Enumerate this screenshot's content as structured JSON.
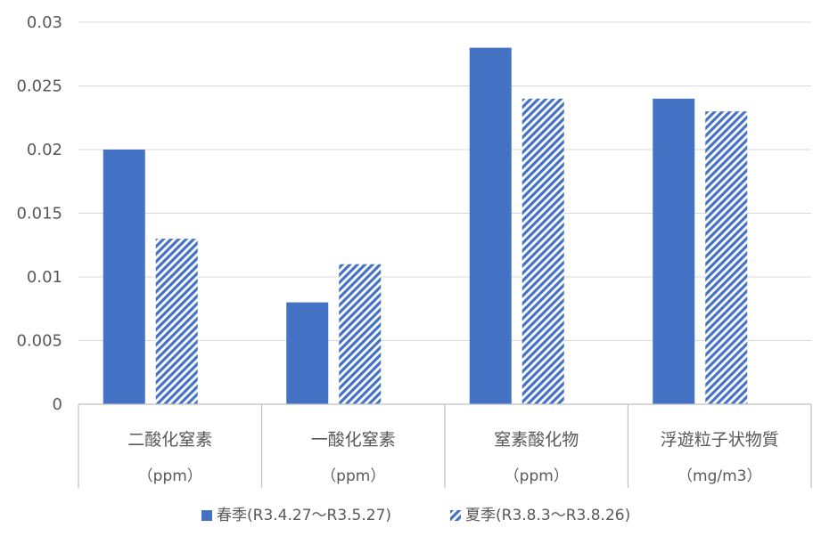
{
  "chart_data": {
    "type": "bar",
    "categories": [
      {
        "name": "二酸化窒素",
        "unit": "（ppm）"
      },
      {
        "name": "一酸化窒素",
        "unit": "（ppm）"
      },
      {
        "name": "窒素酸化物",
        "unit": "（ppm）"
      },
      {
        "name": "浮遊粒子状物質",
        "unit": "（mg/m3）"
      }
    ],
    "series": [
      {
        "name": "春季(R3.4.27～R3.5.27)",
        "values": [
          0.02,
          0.008,
          0.028,
          0.024
        ],
        "color": "#4472c4",
        "pattern": "solid"
      },
      {
        "name": "夏季(R3.8.3～R3.8.26)",
        "values": [
          0.013,
          0.011,
          0.024,
          0.023
        ],
        "color": "#4472c4",
        "pattern": "diagonal-hatch"
      }
    ],
    "y_ticks": [
      "0",
      "0.005",
      "0.01",
      "0.015",
      "0.02",
      "0.025",
      "0.03"
    ],
    "ylim": [
      0,
      0.03
    ],
    "grid": true,
    "legend_position": "bottom",
    "title": "",
    "xlabel": "",
    "ylabel": ""
  }
}
